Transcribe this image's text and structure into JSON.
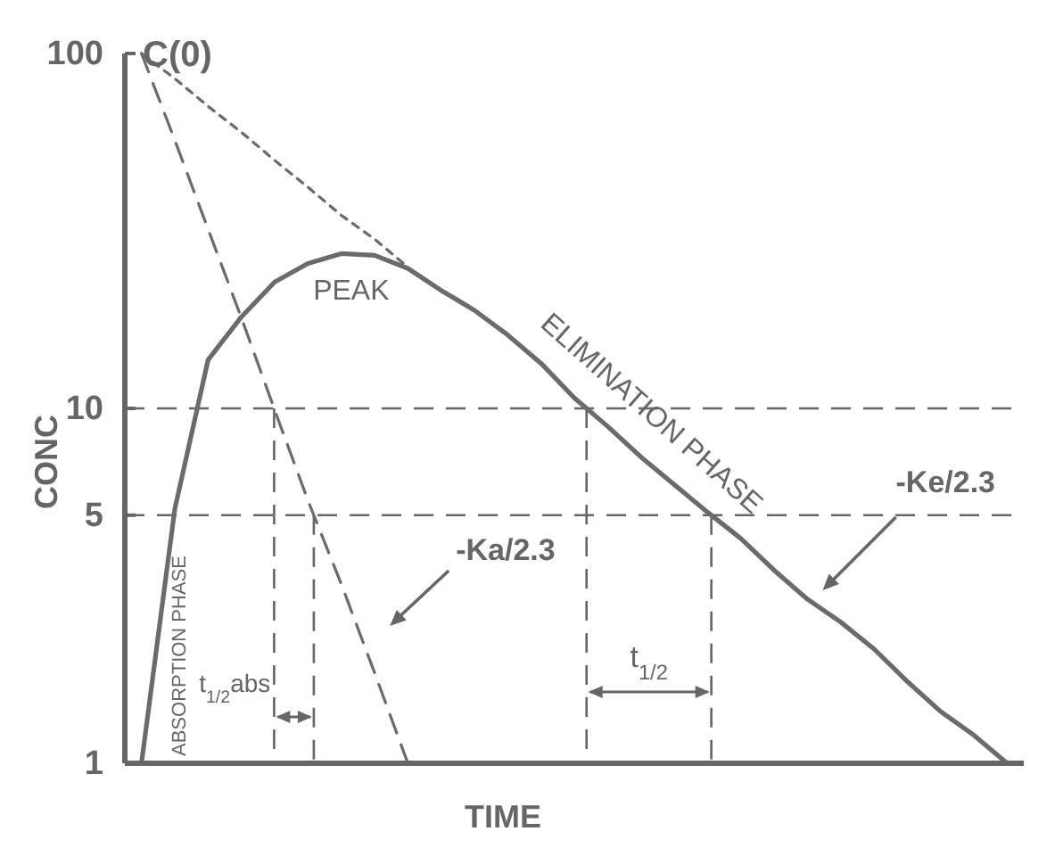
{
  "chart_data": {
    "type": "line",
    "xlabel": "TIME",
    "ylabel": "CONC",
    "categories": [
      null,
      null,
      null,
      null,
      null,
      null,
      null,
      null,
      null,
      null,
      null,
      null,
      null,
      null,
      null,
      null,
      null,
      null,
      null,
      null,
      null,
      null,
      null,
      null,
      null,
      null,
      null
    ],
    "series": [
      {
        "color": "#6b6b6b",
        "line_style": "solid",
        "values": [
          1,
          5.2,
          13.7,
          18.1,
          22.7,
          25.6,
          27.3,
          27,
          24.8,
          21.5,
          18.9,
          16.1,
          13.4,
          10.7,
          8.9,
          7.3,
          6.1,
          5.1,
          4.3,
          3.5,
          2.9,
          2.5,
          2.1,
          1.7,
          1.4,
          1.2,
          1
        ]
      },
      {
        "color": "#6b6b6b",
        "line_style": "dotted",
        "values": [
          100,
          85,
          71,
          60,
          50,
          42,
          35,
          30,
          25,
          null,
          null,
          null,
          null,
          null,
          null,
          null,
          null,
          null,
          null,
          null,
          null,
          null,
          null,
          null,
          null,
          null,
          null
        ]
      },
      {
        "color": "#6b6b6b",
        "line_style": "dashed",
        "values": [
          100,
          57,
          32,
          18,
          9.9,
          5.5,
          3.2,
          1.8,
          1,
          null,
          null,
          null,
          null,
          null,
          null,
          null,
          null,
          null,
          null,
          null,
          null,
          null,
          null,
          null,
          null,
          null,
          null
        ]
      }
    ],
    "log": true,
    "ylim": [
      1,
      100
    ],
    "yticks": [
      1,
      5,
      10,
      100
    ],
    "grid": false,
    "ref_lines": [
      {
        "axis": "y",
        "value": 10,
        "line_style": "dashed"
      },
      {
        "axis": "y",
        "value": 5,
        "line_style": "dashed"
      }
    ],
    "annotations": [
      "C(0)",
      "PEAK",
      "ABSORPTION PHASE",
      "ELIMINATION PHASE",
      "t$_{1/2}$abs",
      "t$_{1/2}$",
      "-Ka/2.3",
      "-Ke/2.3"
    ]
  }
}
